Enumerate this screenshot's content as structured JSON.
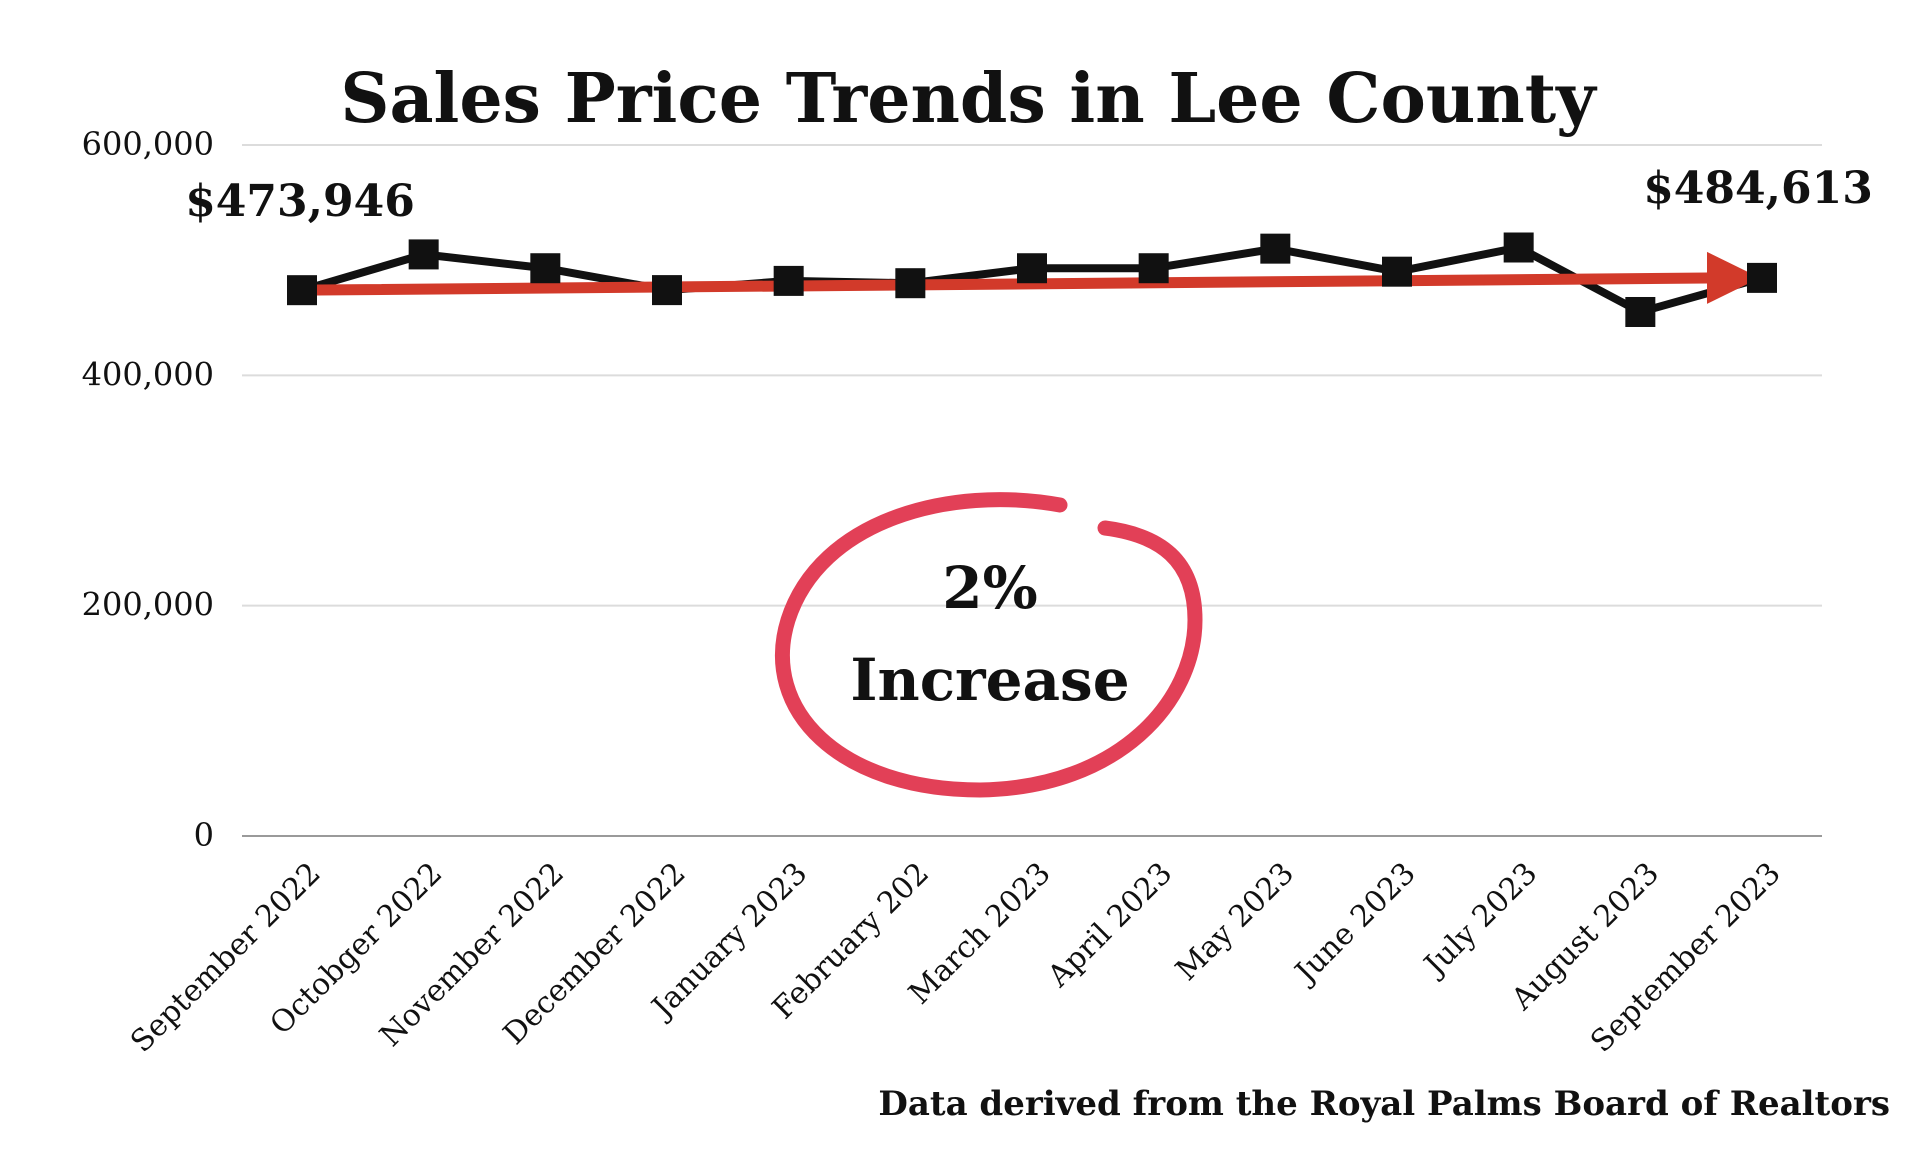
{
  "chart_data": {
    "type": "line",
    "title": "Sales Price Trends in Lee County",
    "xlabel": "",
    "ylabel": "",
    "ylim": [
      0,
      600000
    ],
    "yticks": [
      0,
      200000,
      400000,
      600000
    ],
    "ytick_labels": [
      "0",
      "200,000",
      "400,000",
      "600,000"
    ],
    "grid": true,
    "legend": "none",
    "categories": [
      "September 2022",
      "Octobger 2022",
      "November 2022",
      "December 2022",
      "January 2023",
      "February 202",
      "March 2023",
      "April 2023",
      "May 2023",
      "June 2023",
      "July 2023",
      "August 2023",
      "September 2023"
    ],
    "series": [
      {
        "values": [
          473946,
          505000,
          493000,
          474000,
          482000,
          480000,
          493000,
          493000,
          510000,
          490000,
          511000,
          455000,
          484613
        ],
        "color": "#111111",
        "marker": "square"
      }
    ],
    "trend_arrow": {
      "from": 473946,
      "to": 484613,
      "color": "#d23a2a"
    },
    "annotations": {
      "start_value": "$473,946",
      "end_value": "$484,613",
      "change_line1": "2%",
      "change_line2": "Increase",
      "circle_color": "#e24057"
    },
    "source_note": "Data derived from the Royal Palms Board of Realtors"
  }
}
